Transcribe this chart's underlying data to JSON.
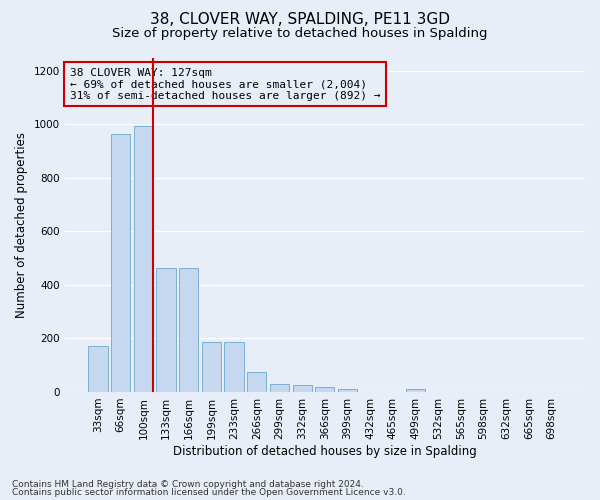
{
  "title": "38, CLOVER WAY, SPALDING, PE11 3GD",
  "subtitle": "Size of property relative to detached houses in Spalding",
  "xlabel": "Distribution of detached houses by size in Spalding",
  "ylabel": "Number of detached properties",
  "footnote1": "Contains HM Land Registry data © Crown copyright and database right 2024.",
  "footnote2": "Contains public sector information licensed under the Open Government Licence v3.0.",
  "annotation_line1": "38 CLOVER WAY: 127sqm",
  "annotation_line2": "← 69% of detached houses are smaller (2,004)",
  "annotation_line3": "31% of semi-detached houses are larger (892) →",
  "bar_categories": [
    "33sqm",
    "66sqm",
    "100sqm",
    "133sqm",
    "166sqm",
    "199sqm",
    "233sqm",
    "266sqm",
    "299sqm",
    "332sqm",
    "366sqm",
    "399sqm",
    "432sqm",
    "465sqm",
    "499sqm",
    "532sqm",
    "565sqm",
    "598sqm",
    "632sqm",
    "665sqm",
    "698sqm"
  ],
  "bar_values": [
    170,
    965,
    995,
    465,
    465,
    185,
    185,
    75,
    30,
    25,
    20,
    10,
    0,
    0,
    10,
    0,
    0,
    0,
    0,
    0,
    0
  ],
  "bar_color": "#c5d8f0",
  "bar_edge_color": "#7aafd4",
  "vline_color": "#cc0000",
  "annotation_box_color": "#cc0000",
  "ylim": [
    0,
    1250
  ],
  "yticks": [
    0,
    200,
    400,
    600,
    800,
    1000,
    1200
  ],
  "bg_color": "#e8eef8",
  "grid_color": "#ffffff",
  "title_fontsize": 11,
  "subtitle_fontsize": 9.5,
  "axis_label_fontsize": 8.5,
  "tick_fontsize": 7.5,
  "annotation_fontsize": 8,
  "footnote_fontsize": 6.5
}
